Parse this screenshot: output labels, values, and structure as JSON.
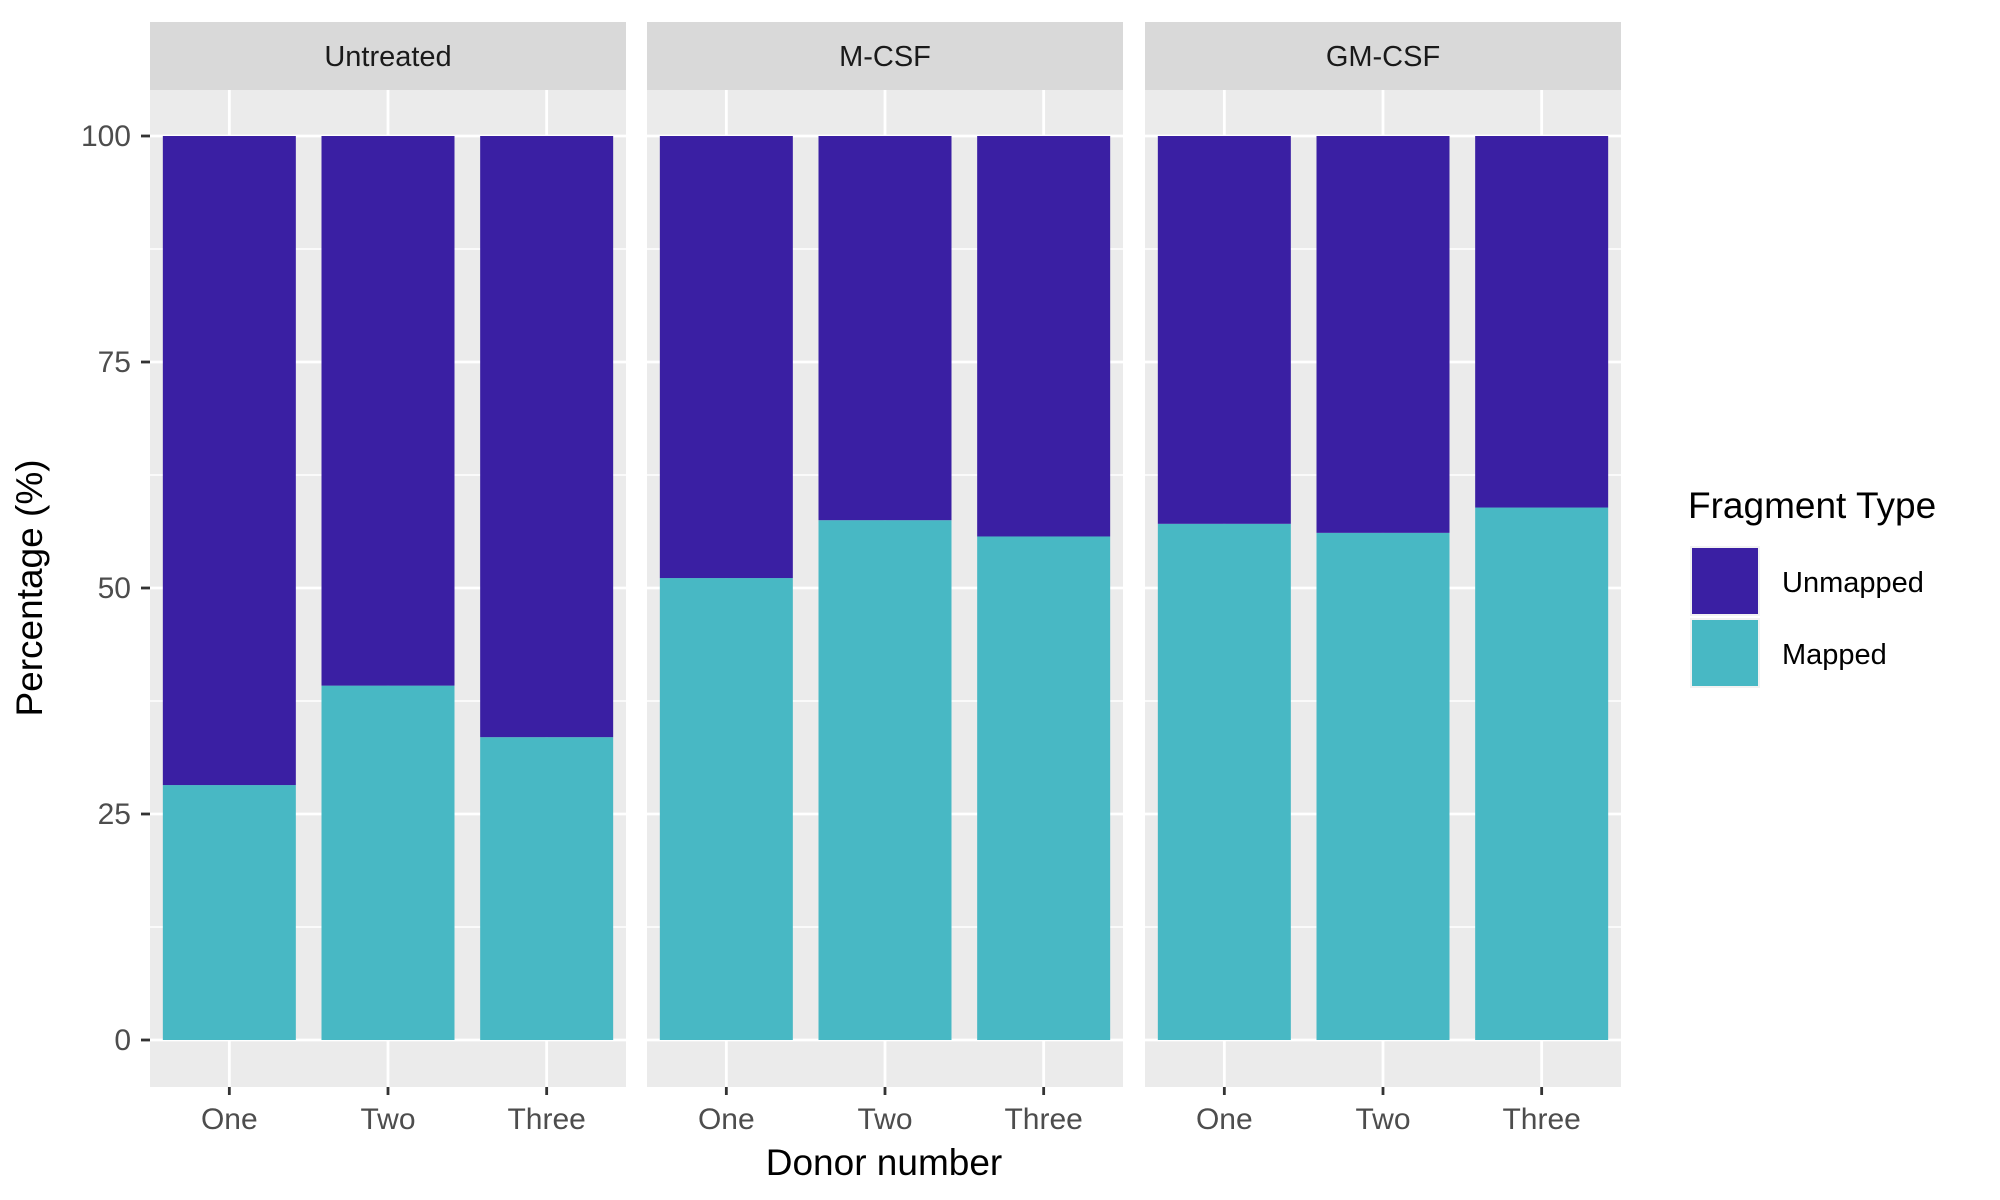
{
  "chart_data": {
    "type": "bar",
    "stacked": true,
    "facets": [
      "Untreated",
      "M-CSF",
      "GM-CSF"
    ],
    "categories": [
      "One",
      "Two",
      "Three"
    ],
    "series": [
      {
        "name": "Unmapped",
        "color": "#3a1fa3",
        "values": [
          [
            71.8,
            60.8,
            66.5
          ],
          [
            48.9,
            42.5,
            44.3
          ],
          [
            42.9,
            43.9,
            41.1
          ]
        ]
      },
      {
        "name": "Mapped",
        "color": "#48b8c4",
        "values": [
          [
            28.2,
            39.2,
            33.5
          ],
          [
            51.1,
            57.5,
            55.7
          ],
          [
            57.1,
            56.1,
            58.9
          ]
        ]
      }
    ],
    "xlabel": "Donor number",
    "ylabel": "Percentage (%)",
    "ylim": [
      0,
      100
    ],
    "yticks": [
      0,
      25,
      50,
      75,
      100
    ],
    "grid": true,
    "legend": {
      "title": "Fragment Type",
      "position": "right",
      "entries": [
        "Unmapped",
        "Mapped"
      ]
    },
    "panel_background": "#ebebeb",
    "strip_background": "#d9d9d9"
  }
}
